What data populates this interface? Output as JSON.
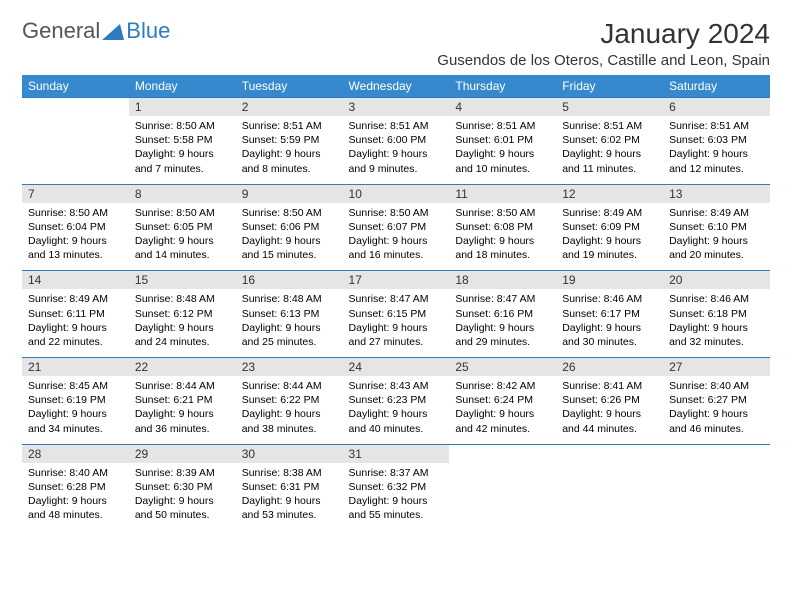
{
  "logo": {
    "general": "General",
    "blue": "Blue"
  },
  "title": "January 2024",
  "location": "Gusendos de los Oteros, Castille and Leon, Spain",
  "day_headers": [
    "Sunday",
    "Monday",
    "Tuesday",
    "Wednesday",
    "Thursday",
    "Friday",
    "Saturday"
  ],
  "colors": {
    "header_bg": "#3789ce",
    "header_text": "#ffffff",
    "daynum_bg": "#e5e5e5",
    "border": "#2e7cc0",
    "title_color": "#333333",
    "logo_gray": "#555555",
    "logo_blue": "#2e7cc0"
  },
  "fonts": {
    "title_pt": 28,
    "location_pt": 15,
    "header_pt": 12,
    "daynum_pt": 12,
    "cell_pt": 10.5
  },
  "weeks": [
    {
      "nums": [
        "",
        "1",
        "2",
        "3",
        "4",
        "5",
        "6"
      ],
      "details": [
        "",
        "Sunrise: 8:50 AM\nSunset: 5:58 PM\nDaylight: 9 hours and 7 minutes.",
        "Sunrise: 8:51 AM\nSunset: 5:59 PM\nDaylight: 9 hours and 8 minutes.",
        "Sunrise: 8:51 AM\nSunset: 6:00 PM\nDaylight: 9 hours and 9 minutes.",
        "Sunrise: 8:51 AM\nSunset: 6:01 PM\nDaylight: 9 hours and 10 minutes.",
        "Sunrise: 8:51 AM\nSunset: 6:02 PM\nDaylight: 9 hours and 11 minutes.",
        "Sunrise: 8:51 AM\nSunset: 6:03 PM\nDaylight: 9 hours and 12 minutes."
      ]
    },
    {
      "nums": [
        "7",
        "8",
        "9",
        "10",
        "11",
        "12",
        "13"
      ],
      "details": [
        "Sunrise: 8:50 AM\nSunset: 6:04 PM\nDaylight: 9 hours and 13 minutes.",
        "Sunrise: 8:50 AM\nSunset: 6:05 PM\nDaylight: 9 hours and 14 minutes.",
        "Sunrise: 8:50 AM\nSunset: 6:06 PM\nDaylight: 9 hours and 15 minutes.",
        "Sunrise: 8:50 AM\nSunset: 6:07 PM\nDaylight: 9 hours and 16 minutes.",
        "Sunrise: 8:50 AM\nSunset: 6:08 PM\nDaylight: 9 hours and 18 minutes.",
        "Sunrise: 8:49 AM\nSunset: 6:09 PM\nDaylight: 9 hours and 19 minutes.",
        "Sunrise: 8:49 AM\nSunset: 6:10 PM\nDaylight: 9 hours and 20 minutes."
      ]
    },
    {
      "nums": [
        "14",
        "15",
        "16",
        "17",
        "18",
        "19",
        "20"
      ],
      "details": [
        "Sunrise: 8:49 AM\nSunset: 6:11 PM\nDaylight: 9 hours and 22 minutes.",
        "Sunrise: 8:48 AM\nSunset: 6:12 PM\nDaylight: 9 hours and 24 minutes.",
        "Sunrise: 8:48 AM\nSunset: 6:13 PM\nDaylight: 9 hours and 25 minutes.",
        "Sunrise: 8:47 AM\nSunset: 6:15 PM\nDaylight: 9 hours and 27 minutes.",
        "Sunrise: 8:47 AM\nSunset: 6:16 PM\nDaylight: 9 hours and 29 minutes.",
        "Sunrise: 8:46 AM\nSunset: 6:17 PM\nDaylight: 9 hours and 30 minutes.",
        "Sunrise: 8:46 AM\nSunset: 6:18 PM\nDaylight: 9 hours and 32 minutes."
      ]
    },
    {
      "nums": [
        "21",
        "22",
        "23",
        "24",
        "25",
        "26",
        "27"
      ],
      "details": [
        "Sunrise: 8:45 AM\nSunset: 6:19 PM\nDaylight: 9 hours and 34 minutes.",
        "Sunrise: 8:44 AM\nSunset: 6:21 PM\nDaylight: 9 hours and 36 minutes.",
        "Sunrise: 8:44 AM\nSunset: 6:22 PM\nDaylight: 9 hours and 38 minutes.",
        "Sunrise: 8:43 AM\nSunset: 6:23 PM\nDaylight: 9 hours and 40 minutes.",
        "Sunrise: 8:42 AM\nSunset: 6:24 PM\nDaylight: 9 hours and 42 minutes.",
        "Sunrise: 8:41 AM\nSunset: 6:26 PM\nDaylight: 9 hours and 44 minutes.",
        "Sunrise: 8:40 AM\nSunset: 6:27 PM\nDaylight: 9 hours and 46 minutes."
      ]
    },
    {
      "nums": [
        "28",
        "29",
        "30",
        "31",
        "",
        "",
        ""
      ],
      "details": [
        "Sunrise: 8:40 AM\nSunset: 6:28 PM\nDaylight: 9 hours and 48 minutes.",
        "Sunrise: 8:39 AM\nSunset: 6:30 PM\nDaylight: 9 hours and 50 minutes.",
        "Sunrise: 8:38 AM\nSunset: 6:31 PM\nDaylight: 9 hours and 53 minutes.",
        "Sunrise: 8:37 AM\nSunset: 6:32 PM\nDaylight: 9 hours and 55 minutes.",
        "",
        "",
        ""
      ]
    }
  ]
}
